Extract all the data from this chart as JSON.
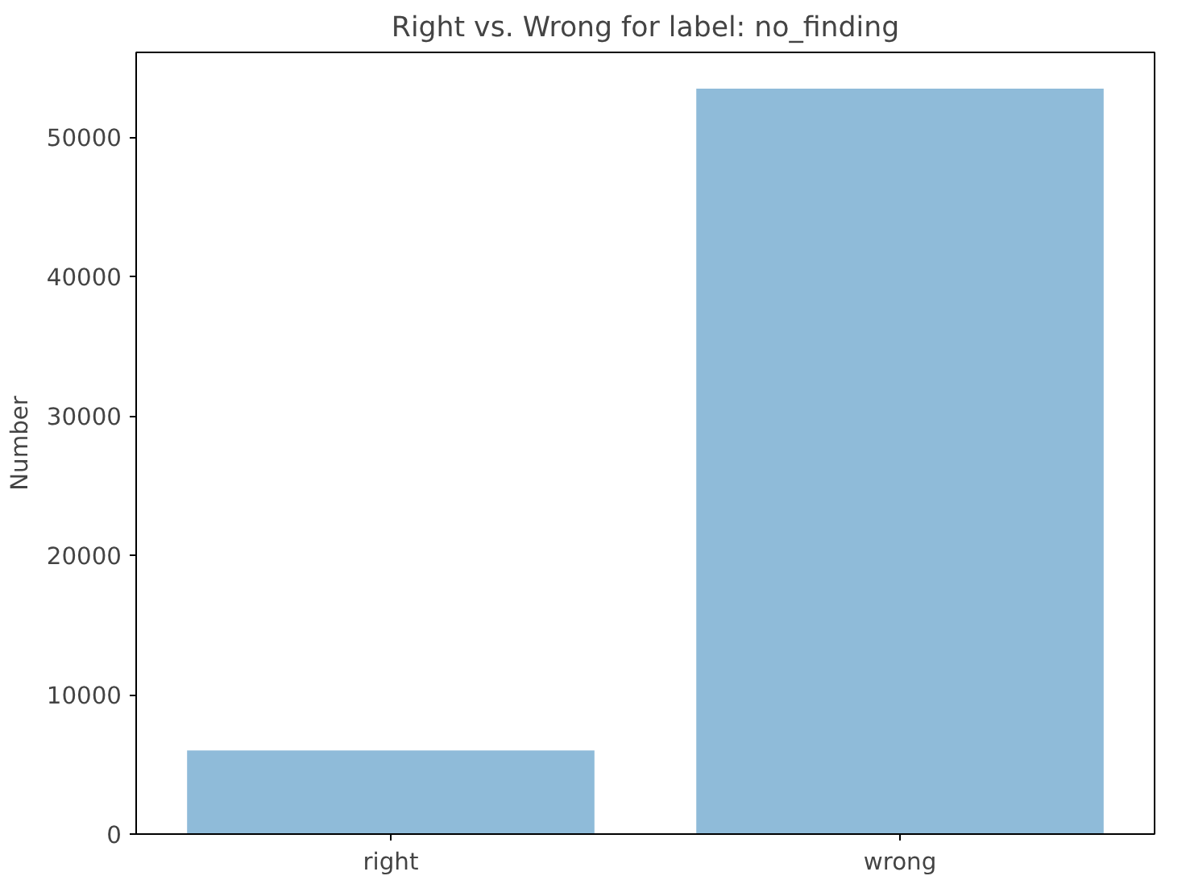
{
  "chart_data": {
    "type": "bar",
    "title": "Right vs. Wrong for label: no_finding",
    "ylabel": "Number",
    "categories": [
      "right",
      "wrong"
    ],
    "values": [
      6000,
      53500
    ],
    "color": "#8fbbd9",
    "ylim": [
      0,
      56100
    ],
    "yticks": [
      0,
      10000,
      20000,
      30000,
      40000,
      50000
    ],
    "grid": false
  }
}
